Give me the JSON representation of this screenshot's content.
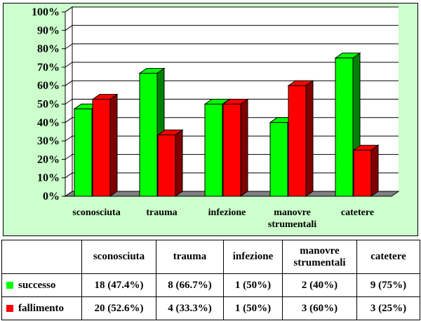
{
  "chart_data": {
    "type": "bar",
    "style": "3d-clustered",
    "categories": [
      "sconosciuta",
      "trauma",
      "infezione",
      "manovre strumentali",
      "catetere"
    ],
    "category_label_lines": [
      [
        "sconosciuta"
      ],
      [
        "trauma"
      ],
      [
        "infezione"
      ],
      [
        "manovre",
        "strumentali"
      ],
      [
        "catetere"
      ]
    ],
    "series": [
      {
        "name": "successo",
        "values": [
          47.4,
          66.7,
          50,
          40,
          75
        ],
        "labels": [
          "18 (47.4%)",
          "8 (66.7%)",
          "1 (50%)",
          "2 (40%)",
          "9 (75%)"
        ],
        "color": "#00ff00",
        "dark_color": "#008000"
      },
      {
        "name": "fallimento",
        "values": [
          52.6,
          33.3,
          50,
          60,
          25
        ],
        "labels": [
          "20 (52.6%)",
          "4 (33.3%)",
          "1 (50%)",
          "3 (60%)",
          "3 (25%)"
        ],
        "color": "#ff0000",
        "dark_color": "#800000"
      }
    ],
    "y_ticks": [
      "0%",
      "10%",
      "20%",
      "30%",
      "40%",
      "50%",
      "60%",
      "70%",
      "80%",
      "90%",
      "100%"
    ],
    "ylim": [
      0,
      100
    ],
    "grid": true,
    "legend": "data-table-below",
    "panel_color": "#ccffcc",
    "wall_color": "#ffffff",
    "floor_color": "#808080"
  }
}
